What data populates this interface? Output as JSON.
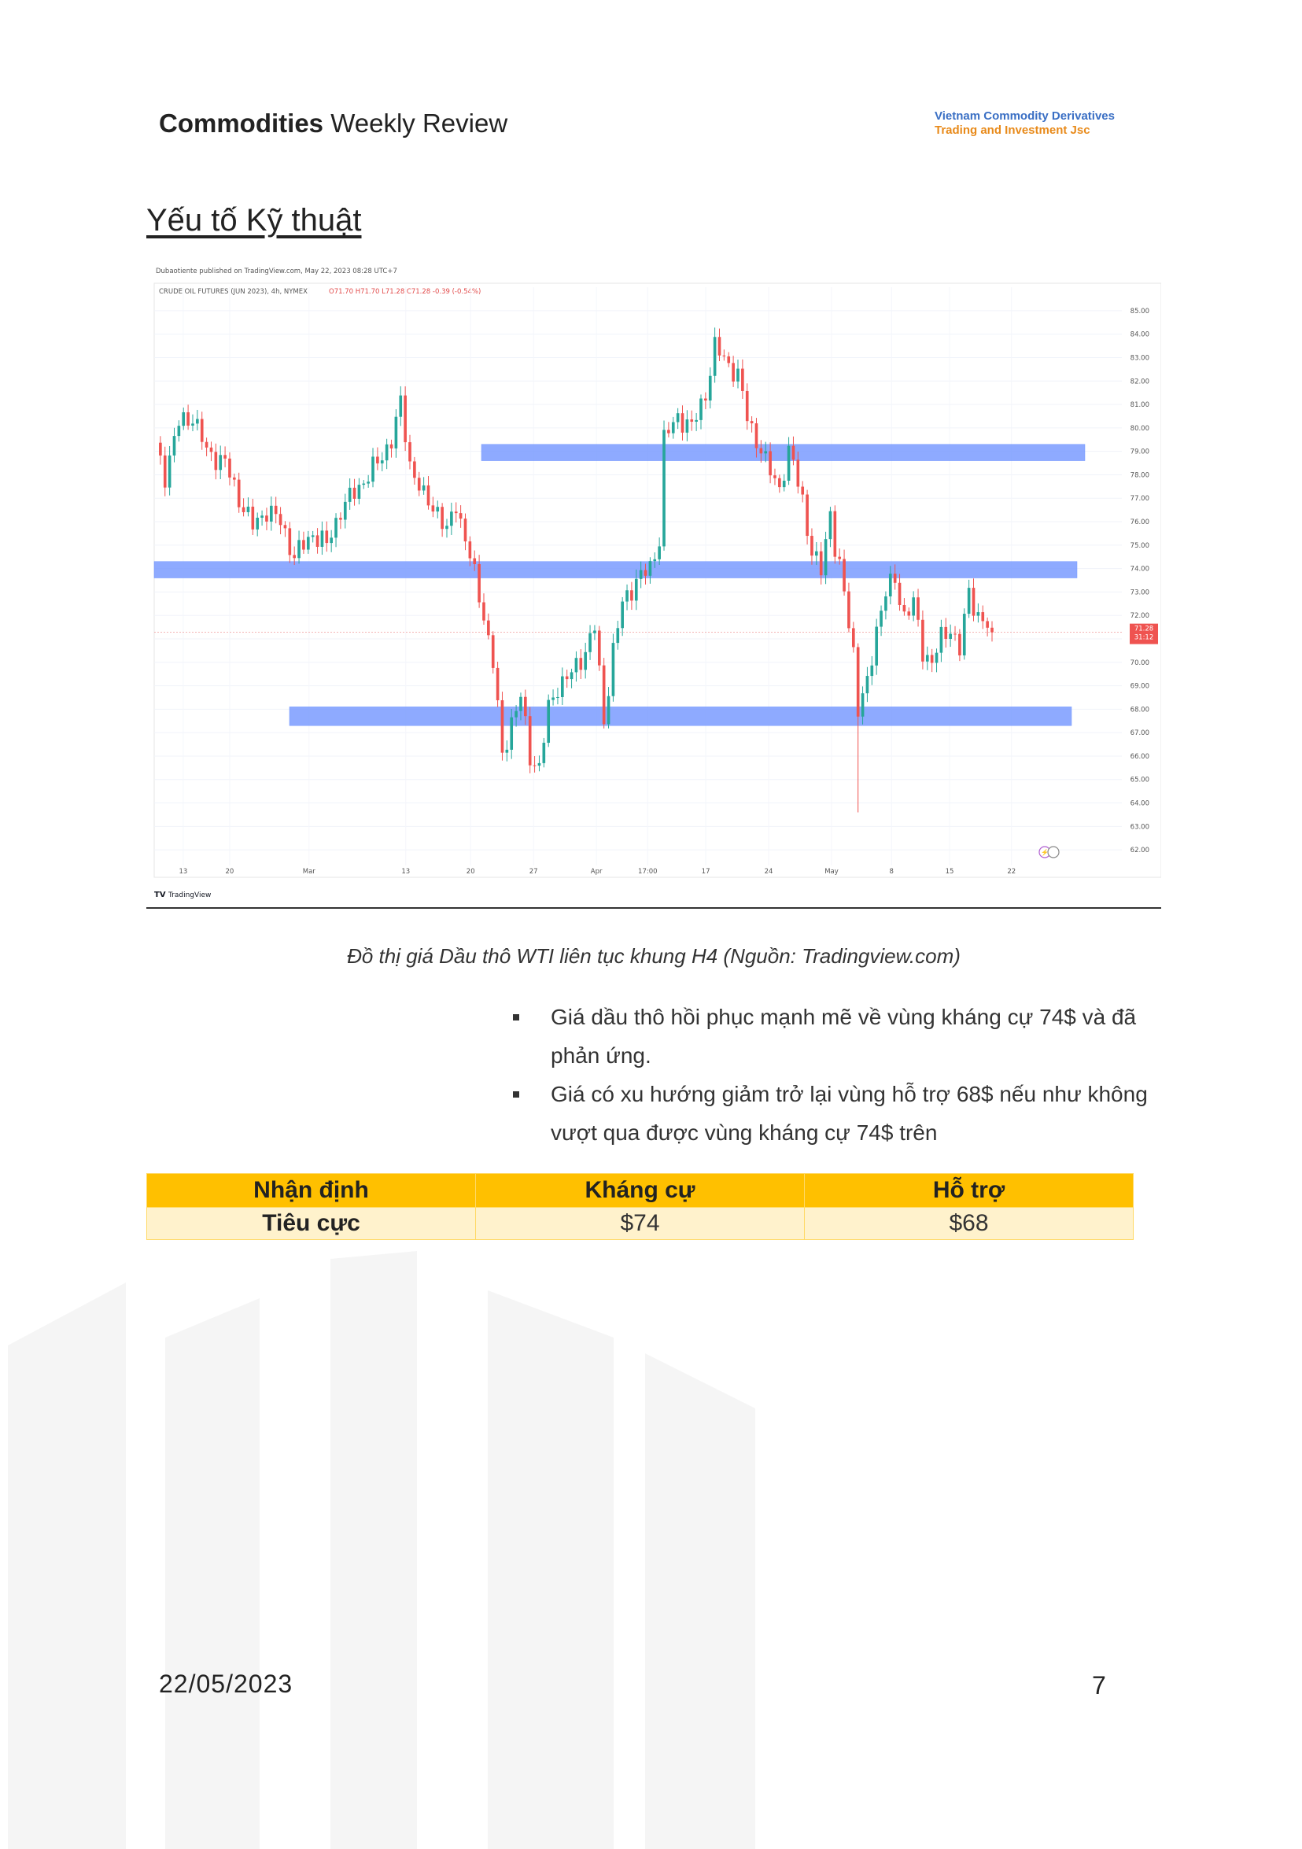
{
  "header": {
    "title_bold": "Commodities",
    "title_rest": " Weekly Review"
  },
  "company": {
    "line1": "Vietnam Commodity Derivatives",
    "line2": "Trading and Investment Jsc"
  },
  "section_title": "Yếu tố Kỹ thuật",
  "chart": {
    "published_line": "Dubaotiente published on TradingView.com, May 22, 2023 08:28 UTC+7",
    "symbol_line": "CRUDE OIL FUTURES (JUN 2023), 4h, NYMEX",
    "ohlc_line": "O71.70 H71.70 L71.28 C71.28 -0.39 (-0.54%)",
    "price_label": "71.28",
    "price_countdown": "31:12",
    "brand": "TradingView",
    "colors": {
      "up": "#26a69a",
      "down": "#ef5350",
      "zone": "#7b9cff",
      "price_tag": "#ef5350"
    }
  },
  "chart_data": {
    "type": "candlestick",
    "ylim": [
      61.5,
      85.5
    ],
    "y_ticks": [
      "85.00",
      "84.00",
      "83.00",
      "82.00",
      "81.00",
      "80.00",
      "79.00",
      "78.00",
      "77.00",
      "76.00",
      "75.00",
      "74.00",
      "73.00",
      "72.00",
      "71.00",
      "70.00",
      "69.00",
      "68.00",
      "67.00",
      "66.00",
      "65.00",
      "64.00",
      "63.00",
      "62.00"
    ],
    "x_ticks": [
      "13",
      "20",
      "Mar",
      "13",
      "20",
      "27",
      "Apr",
      "17:00",
      "17",
      "24",
      "May",
      "8",
      "15",
      "22"
    ],
    "path": [
      [
        0,
        79.2
      ],
      [
        2,
        78.0
      ],
      [
        5,
        80.2
      ],
      [
        8,
        80.5
      ],
      [
        11,
        79.0
      ],
      [
        15,
        78.5
      ],
      [
        18,
        77.0
      ],
      [
        21,
        75.8
      ],
      [
        24,
        76.5
      ],
      [
        27,
        76.0
      ],
      [
        30,
        74.5
      ],
      [
        34,
        75.5
      ],
      [
        37,
        75.0
      ],
      [
        40,
        76.5
      ],
      [
        44,
        77.5
      ],
      [
        48,
        78.5
      ],
      [
        51,
        79.5
      ],
      [
        53,
        81.0
      ],
      [
        55,
        78.5
      ],
      [
        58,
        77.0
      ],
      [
        61,
        76.5
      ],
      [
        63,
        75.5
      ],
      [
        65,
        76.8
      ],
      [
        68,
        74.5
      ],
      [
        71,
        72.0
      ],
      [
        73,
        70.0
      ],
      [
        75,
        66.0
      ],
      [
        77,
        67.5
      ],
      [
        79,
        68.5
      ],
      [
        81,
        66.0
      ],
      [
        83,
        65.5
      ],
      [
        85,
        68.0
      ],
      [
        87,
        69.0
      ],
      [
        90,
        69.5
      ],
      [
        93,
        70.5
      ],
      [
        95,
        71.5
      ],
      [
        97,
        67.5
      ],
      [
        99,
        70.5
      ],
      [
        101,
        72.5
      ],
      [
        104,
        73.5
      ],
      [
        107,
        74.0
      ],
      [
        109,
        75.3
      ],
      [
        110,
        79.5
      ],
      [
        113,
        80.5
      ],
      [
        116,
        80.0
      ],
      [
        119,
        81.5
      ],
      [
        121,
        83.4
      ],
      [
        123,
        83.0
      ],
      [
        126,
        82.2
      ],
      [
        128,
        80.5
      ],
      [
        130,
        79.5
      ],
      [
        132,
        78.5
      ],
      [
        135,
        77.5
      ],
      [
        137,
        78.8
      ],
      [
        138,
        78.5
      ],
      [
        140,
        77.0
      ],
      [
        142,
        74.5
      ],
      [
        144,
        74.0
      ],
      [
        146,
        76.5
      ],
      [
        147,
        74.8
      ],
      [
        149,
        73.0
      ],
      [
        151,
        70.5
      ],
      [
        152,
        68.0
      ],
      [
        154,
        69.0
      ],
      [
        156,
        71.5
      ],
      [
        158,
        73.0
      ],
      [
        160,
        73.5
      ],
      [
        162,
        72.0
      ],
      [
        164,
        72.5
      ],
      [
        166,
        70.5
      ],
      [
        168,
        70.0
      ],
      [
        170,
        71.0
      ],
      [
        172,
        71.5
      ],
      [
        174,
        70.5
      ],
      [
        176,
        73.0
      ],
      [
        178,
        72.0
      ],
      [
        180,
        71.5
      ],
      [
        181,
        71.28
      ]
    ],
    "zones": [
      {
        "label": "Kháng cự",
        "low": 78.6,
        "high": 79.3
      },
      {
        "label": "Kháng cự",
        "low": 73.6,
        "high": 74.3
      },
      {
        "label": "Hỗ trợ",
        "low": 67.3,
        "high": 68.1
      }
    ],
    "spike_low": 63.6,
    "last_price": 71.28
  },
  "caption": "Đồ thị  giá Dầu thô WTI  liên tục khung H4 (Nguồn: Tradingview.com)",
  "bullets": [
    "Giá dầu thô hồi phục mạnh mẽ về vùng kháng cự 74$ và đã phản ứng.",
    "Giá có xu hướng giảm trở lại vùng hỗ trợ 68$ nếu như không vượt qua được vùng kháng cự 74$ trên"
  ],
  "table": {
    "headers": [
      "Nhận định",
      "Kháng cự",
      "Hỗ trợ"
    ],
    "row": [
      "Tiêu cực",
      "$74",
      "$68"
    ]
  },
  "footer": {
    "date": "22/05/2023",
    "page": "7"
  }
}
